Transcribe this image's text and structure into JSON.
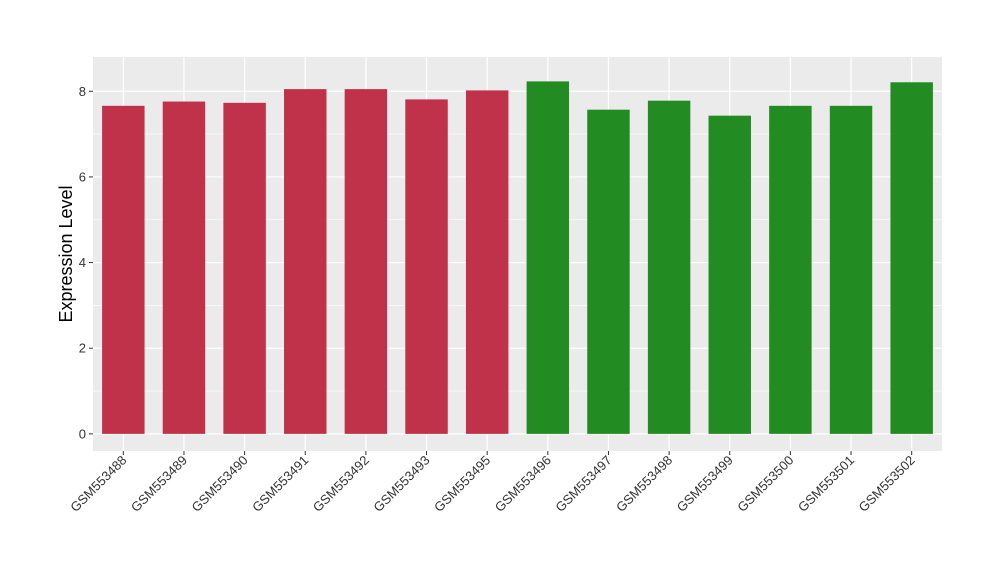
{
  "chart_data": {
    "type": "bar",
    "title": "",
    "xlabel": "",
    "ylabel": "Expression Level",
    "ylim": [
      -0.4,
      8.8
    ],
    "yticks": [
      0,
      2,
      4,
      6,
      8
    ],
    "grid": true,
    "categories": [
      "GSM553488",
      "GSM553489",
      "GSM553490",
      "GSM553491",
      "GSM553492",
      "GSM553493",
      "GSM553495",
      "GSM553496",
      "GSM553497",
      "GSM553498",
      "GSM553499",
      "GSM553500",
      "GSM553501",
      "GSM553502"
    ],
    "values": [
      7.66,
      7.76,
      7.73,
      8.05,
      8.05,
      7.81,
      8.02,
      8.23,
      7.57,
      7.78,
      7.43,
      7.66,
      7.66,
      8.21
    ],
    "bar_colors": [
      "#C0314A",
      "#C0314A",
      "#C0314A",
      "#C0314A",
      "#C0314A",
      "#C0314A",
      "#C0314A",
      "#228B22",
      "#228B22",
      "#228B22",
      "#228B22",
      "#228B22",
      "#228B22",
      "#228B22"
    ],
    "panel_color": "#EBEBEB",
    "grid_color": "#FFFFFF"
  }
}
